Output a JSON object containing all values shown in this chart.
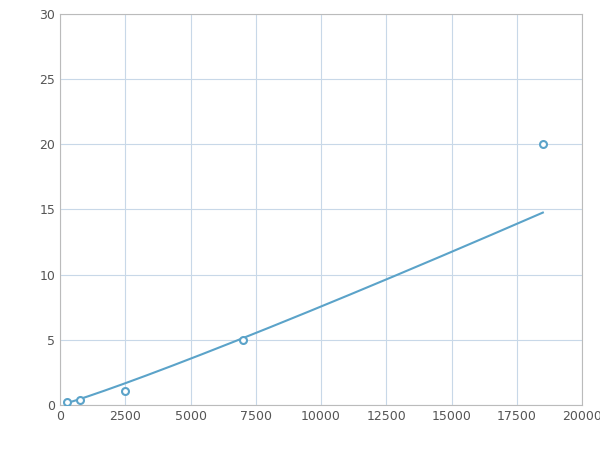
{
  "x": [
    250,
    750,
    2500,
    7000,
    18500
  ],
  "y": [
    0.2,
    0.35,
    1.1,
    5.0,
    20.0
  ],
  "line_color": "#5ba3c9",
  "marker_color": "#5ba3c9",
  "marker_size": 5,
  "line_width": 1.5,
  "xlim": [
    0,
    20000
  ],
  "ylim": [
    0,
    30
  ],
  "xticks": [
    0,
    2500,
    5000,
    7500,
    10000,
    12500,
    15000,
    17500,
    20000
  ],
  "yticks": [
    0,
    5,
    10,
    15,
    20,
    25,
    30
  ],
  "grid_color": "#c8d8e8",
  "background_color": "#ffffff",
  "tick_fontsize": 9,
  "spine_color": "#bbbbbb"
}
